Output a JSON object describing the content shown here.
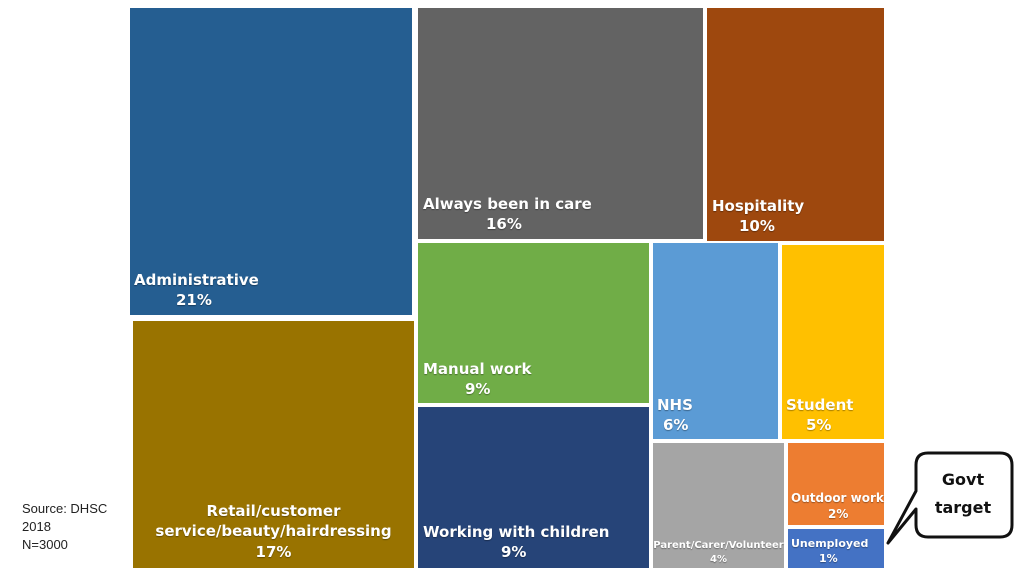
{
  "chart_data": {
    "type": "treemap",
    "categories": [
      {
        "label": "Administrative",
        "percent_label": "21%",
        "value": 21,
        "color": "#255E91"
      },
      {
        "label": "Retail/customer service/beauty/hairdressing",
        "label_lines": [
          "Retail/customer",
          "service/beauty/hairdressing"
        ],
        "percent_label": "17%",
        "value": 17,
        "color": "#997300"
      },
      {
        "label": "Always been in care",
        "percent_label": "16%",
        "value": 16,
        "color": "#636363"
      },
      {
        "label": "Hospitality",
        "percent_label": "10%",
        "value": 10,
        "color": "#9E480E"
      },
      {
        "label": "Manual work",
        "percent_label": "9%",
        "value": 9,
        "color": "#70AD47"
      },
      {
        "label": "Working with children",
        "percent_label": "9%",
        "value": 9,
        "color": "#264478"
      },
      {
        "label": "NHS",
        "percent_label": "6%",
        "value": 6,
        "color": "#5B9BD5"
      },
      {
        "label": "Student",
        "percent_label": "5%",
        "value": 5,
        "color": "#FFC000"
      },
      {
        "label": "Parent/Carer/Volunteer",
        "percent_label": "4%",
        "value": 4,
        "color": "#A5A5A5"
      },
      {
        "label": "Outdoor work",
        "percent_label": "2%",
        "value": 2,
        "color": "#ED7D31"
      },
      {
        "label": "Unemployed",
        "percent_label": "1%",
        "value": 1,
        "color": "#4472C4"
      }
    ]
  },
  "source": {
    "line1": "Source: DHSC",
    "line2": "2018",
    "line3": "N=3000"
  },
  "callout": {
    "line1": "Govt",
    "line2": "target"
  }
}
